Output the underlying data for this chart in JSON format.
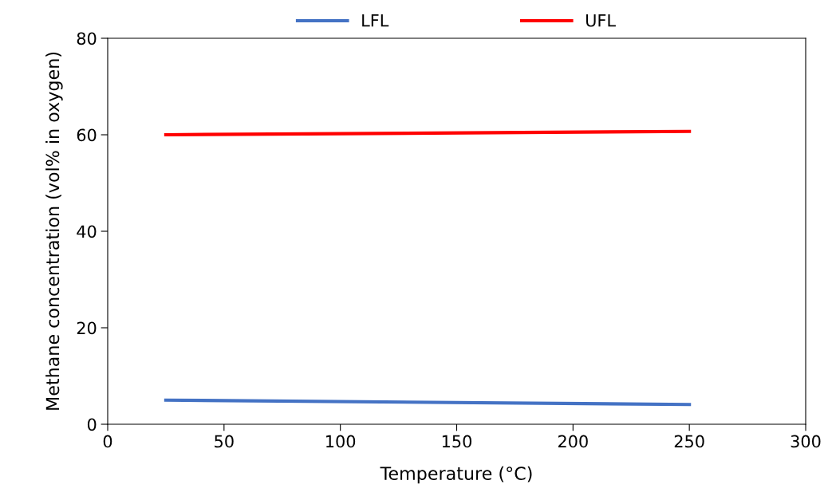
{
  "chart_data": {
    "type": "line",
    "xlabel": "Temperature (°C)",
    "ylabel": "Methane concentration (vol% in oxygen)",
    "x": [
      25,
      250
    ],
    "series": [
      {
        "name": "LFL",
        "color": "#4472c4",
        "values": [
          5.0,
          4.1
        ]
      },
      {
        "name": "UFL",
        "color": "#ff0000",
        "values": [
          60.0,
          60.7
        ]
      }
    ],
    "xlim": [
      0,
      300
    ],
    "xticks": [
      0,
      50,
      100,
      150,
      200,
      250,
      300
    ],
    "ylim": [
      0,
      80
    ],
    "yticks": [
      0,
      20,
      40,
      60,
      80
    ],
    "grid": false,
    "legend": "top",
    "marker": "none",
    "line_style": "solid"
  }
}
